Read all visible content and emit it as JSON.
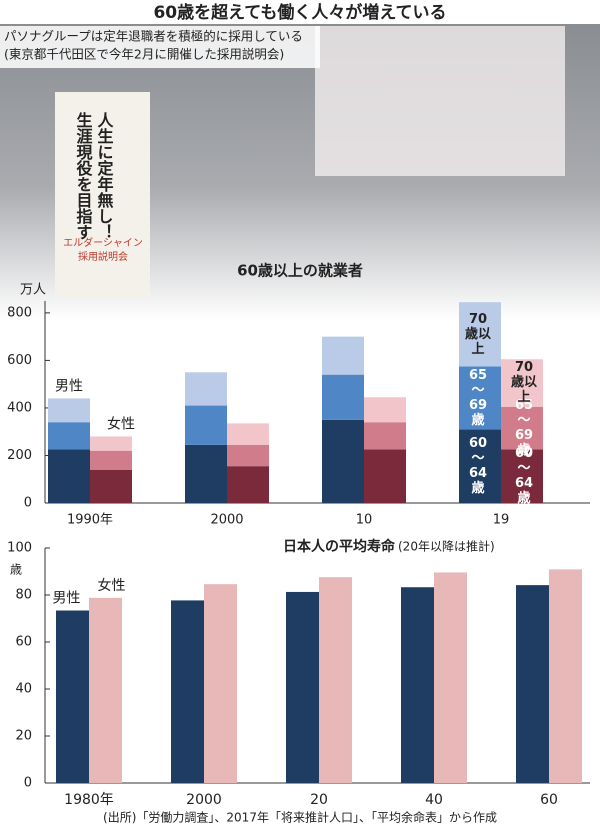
{
  "title": "60歳を超えても働く人々が増えている",
  "photo": {
    "caption": [
      "パソナグループは定年退職者を積極的に採用している",
      "(東京都千代田区で今年2月に開催した採用説明会)"
    ],
    "banner": [
      "人生に定年無し！",
      "生涯現役を目指す"
    ],
    "sign": [
      "エルダーシャイン",
      "採用説明会"
    ]
  },
  "chart_data": [
    {
      "type": "stacked-grouped-bar",
      "title": "60歳以上の就業者",
      "unit": "万人",
      "categories": [
        "1990年",
        "2000",
        "10",
        "19"
      ],
      "ylim": [
        0,
        850
      ],
      "yticks": [
        0,
        200,
        400,
        600,
        800
      ],
      "groups": [
        {
          "name": "男性",
          "series": [
            {
              "name": "60～64歳",
              "color": "#1f3d63",
              "values": [
                225,
                245,
                350,
                310
              ]
            },
            {
              "name": "65～69歳",
              "color": "#4f86c6",
              "values": [
                115,
                165,
                190,
                265
              ]
            },
            {
              "name": "70歳以上",
              "color": "#b9cbe7",
              "values": [
                100,
                140,
                160,
                270
              ]
            }
          ]
        },
        {
          "name": "女性",
          "series": [
            {
              "name": "60～64歳",
              "color": "#7a2a3a",
              "values": [
                140,
                155,
                225,
                225
              ]
            },
            {
              "name": "65～69歳",
              "color": "#d07c8a",
              "values": [
                80,
                90,
                115,
                180
              ]
            },
            {
              "name": "70歳以上",
              "color": "#f1c5c9",
              "values": [
                60,
                90,
                105,
                200
              ]
            }
          ]
        }
      ]
    },
    {
      "type": "grouped-bar",
      "title": "日本人の平均寿命",
      "subtitle": "(20年以降は推計)",
      "unit": "歳",
      "categories": [
        "1980年",
        "2000",
        "20",
        "40",
        "60"
      ],
      "ylim": [
        0,
        100
      ],
      "yticks": [
        0,
        20,
        40,
        60,
        80,
        100
      ],
      "series": [
        {
          "name": "男性",
          "color": "#1f3d63",
          "values": [
            73.4,
            77.7,
            81.3,
            83.3,
            84.2
          ]
        },
        {
          "name": "女性",
          "color": "#e8b7b8",
          "values": [
            78.8,
            84.6,
            87.6,
            89.6,
            90.9
          ]
        }
      ]
    }
  ],
  "source": "(出所)「労働力調査」、2017年「将来推計人口」、「平均余命表」から作成"
}
